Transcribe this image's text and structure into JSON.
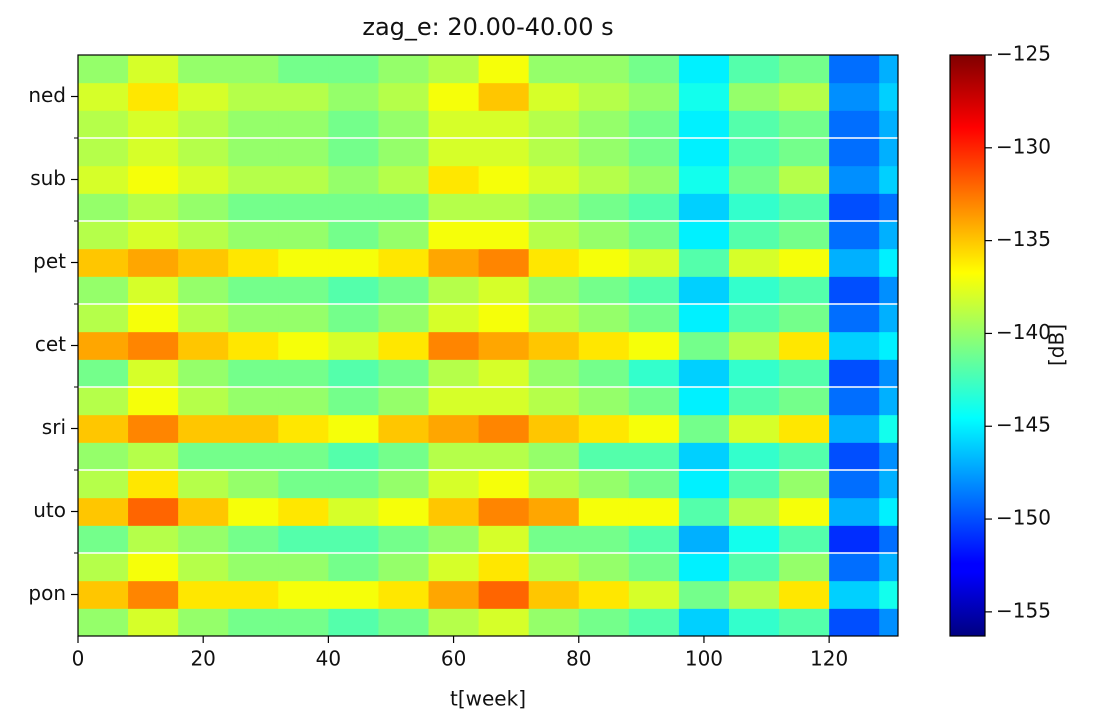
{
  "chart_data": {
    "type": "heatmap",
    "title": "zag_e: 20.00-40.00 s",
    "x_label": "t[week]",
    "colorbar_label": "[dB]",
    "categories": [
      "pon",
      "uto",
      "sri",
      "cet",
      "pet",
      "sub",
      "ned"
    ],
    "x_edges": [
      0,
      8,
      16,
      24,
      32,
      40,
      48,
      56,
      64,
      72,
      80,
      88,
      96,
      104,
      112,
      120,
      128,
      131
    ],
    "xlim": [
      0,
      131
    ],
    "xticks": [
      0,
      20,
      40,
      60,
      80,
      100,
      120
    ],
    "clim": [
      -156.3,
      -125
    ],
    "cticks": [
      {
        "value": -125,
        "label": "−125"
      },
      {
        "value": -130,
        "label": "−130"
      },
      {
        "value": -135,
        "label": "−135"
      },
      {
        "value": -140,
        "label": "−140"
      },
      {
        "value": -145,
        "label": "−145"
      },
      {
        "value": -150,
        "label": "−150"
      },
      {
        "value": -155,
        "label": "−155"
      }
    ],
    "colormap": "jet",
    "values": [
      [
        [
          -140,
          -138,
          -140,
          -141,
          -141,
          -142,
          -141,
          -139,
          -138,
          -140,
          -141,
          -142,
          -146,
          -143,
          -142,
          -150,
          -148
        ],
        [
          -135,
          -133,
          -136,
          -136,
          -137,
          -137,
          -136,
          -134,
          -132,
          -135,
          -136,
          -138,
          -141,
          -139,
          -136,
          -146,
          -144
        ],
        [
          -139,
          -137,
          -139,
          -140,
          -140,
          -141,
          -140,
          -138,
          -136,
          -139,
          -140,
          -141,
          -145,
          -142,
          -140,
          -149,
          -147
        ]
      ],
      [
        [
          -141,
          -139,
          -140,
          -141,
          -142,
          -142,
          -141,
          -140,
          -138,
          -141,
          -141,
          -142,
          -147,
          -144,
          -142,
          -151,
          -149
        ],
        [
          -135,
          -132,
          -135,
          -137,
          -136,
          -138,
          -137,
          -135,
          -133,
          -134,
          -137,
          -137,
          -142,
          -139,
          -137,
          -147,
          -145
        ],
        [
          -139,
          -136,
          -139,
          -140,
          -141,
          -141,
          -140,
          -138,
          -137,
          -139,
          -140,
          -141,
          -145,
          -142,
          -140,
          -149,
          -147
        ]
      ],
      [
        [
          -140,
          -139,
          -141,
          -141,
          -141,
          -142,
          -141,
          -139,
          -139,
          -140,
          -142,
          -142,
          -146,
          -143,
          -142,
          -150,
          -148
        ],
        [
          -135,
          -133,
          -135,
          -135,
          -136,
          -137,
          -135,
          -134,
          -133,
          -135,
          -136,
          -137,
          -141,
          -138,
          -136,
          -147,
          -144
        ],
        [
          -139,
          -137,
          -139,
          -140,
          -140,
          -141,
          -140,
          -138,
          -138,
          -139,
          -140,
          -141,
          -145,
          -142,
          -141,
          -149,
          -147
        ]
      ],
      [
        [
          -141,
          -138,
          -140,
          -141,
          -141,
          -142,
          -141,
          -139,
          -138,
          -140,
          -141,
          -143,
          -146,
          -143,
          -142,
          -150,
          -148
        ],
        [
          -134,
          -133,
          -135,
          -136,
          -137,
          -138,
          -136,
          -133,
          -134,
          -135,
          -136,
          -137,
          -141,
          -139,
          -136,
          -146,
          -145
        ],
        [
          -139,
          -137,
          -139,
          -140,
          -140,
          -141,
          -140,
          -138,
          -137,
          -139,
          -140,
          -141,
          -145,
          -142,
          -141,
          -149,
          -147
        ]
      ],
      [
        [
          -140,
          -138,
          -140,
          -141,
          -141,
          -142,
          -141,
          -139,
          -138,
          -140,
          -141,
          -142,
          -146,
          -143,
          -142,
          -150,
          -148
        ],
        [
          -135,
          -134,
          -135,
          -136,
          -137,
          -137,
          -136,
          -134,
          -133,
          -136,
          -137,
          -138,
          -142,
          -138,
          -137,
          -147,
          -145
        ],
        [
          -139,
          -138,
          -139,
          -140,
          -140,
          -141,
          -140,
          -137,
          -137,
          -139,
          -140,
          -141,
          -145,
          -142,
          -141,
          -149,
          -147
        ]
      ],
      [
        [
          -140,
          -139,
          -140,
          -141,
          -141,
          -141,
          -141,
          -139,
          -139,
          -140,
          -141,
          -142,
          -146,
          -143,
          -142,
          -150,
          -149
        ],
        [
          -138,
          -137,
          -138,
          -139,
          -139,
          -140,
          -139,
          -136,
          -137,
          -138,
          -139,
          -140,
          -144,
          -141,
          -139,
          -148,
          -146
        ],
        [
          -139,
          -138,
          -139,
          -140,
          -140,
          -141,
          -140,
          -138,
          -138,
          -139,
          -140,
          -141,
          -145,
          -142,
          -141,
          -149,
          -147
        ]
      ],
      [
        [
          -139,
          -138,
          -139,
          -140,
          -140,
          -141,
          -140,
          -138,
          -138,
          -139,
          -140,
          -141,
          -145,
          -142,
          -141,
          -149,
          -147
        ],
        [
          -138,
          -136,
          -138,
          -139,
          -139,
          -140,
          -139,
          -137,
          -135,
          -138,
          -139,
          -140,
          -144,
          -140,
          -139,
          -148,
          -146
        ],
        [
          -140,
          -138,
          -140,
          -140,
          -141,
          -141,
          -140,
          -139,
          -137,
          -140,
          -140,
          -141,
          -145,
          -142,
          -141,
          -149,
          -147
        ]
      ]
    ]
  }
}
